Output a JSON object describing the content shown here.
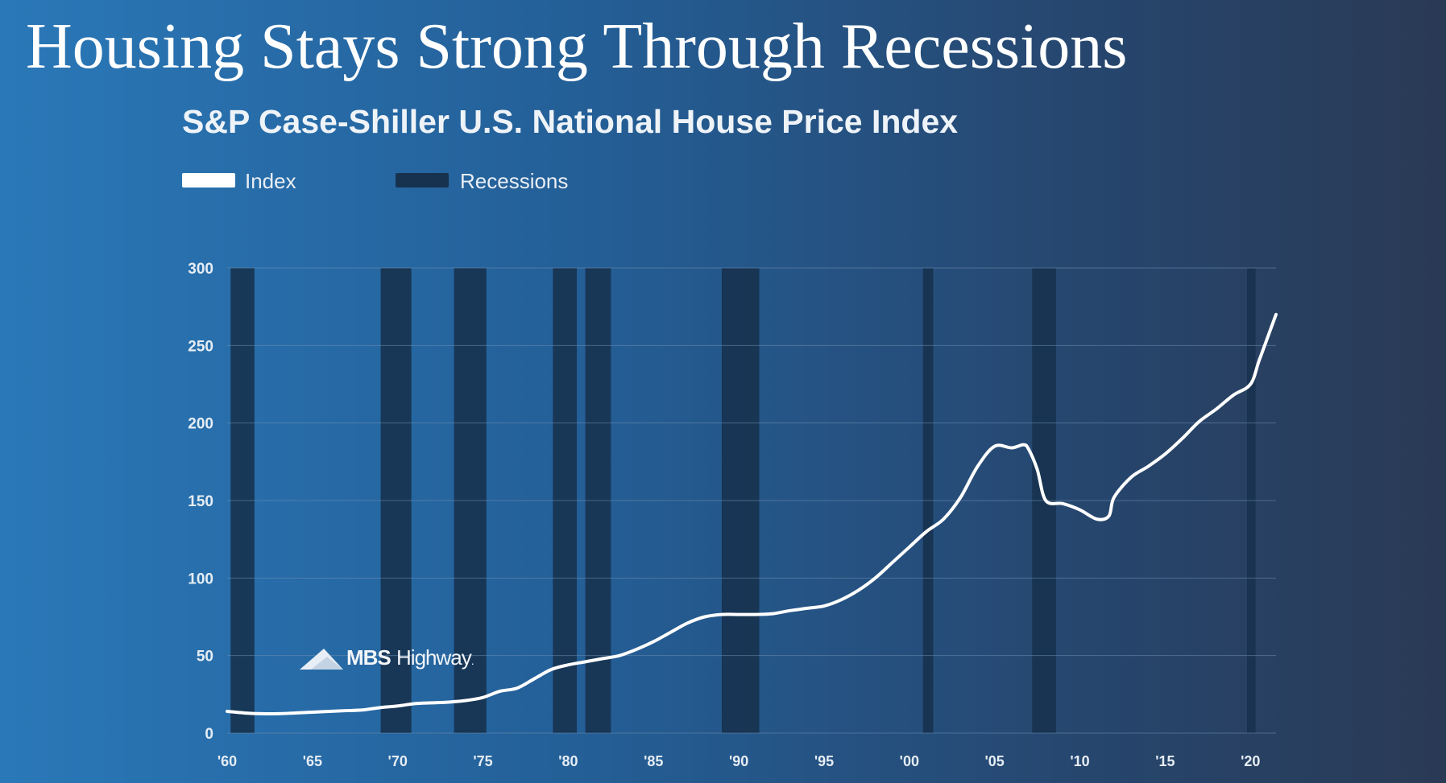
{
  "slide": {
    "headline": "Housing Stays Strong Through Recessions"
  },
  "watermark": {
    "bold": "MBS",
    "light": "Highway",
    "mark": "."
  },
  "colors": {
    "line": "#ffffff",
    "recession": "#17324f",
    "grid": "#6f8fb2",
    "tick": "#e6edf4"
  },
  "chart_data": {
    "type": "line",
    "title": "S&P Case-Shiller U.S. National House Price Index",
    "xlabel": "",
    "ylabel": "",
    "xlim": [
      1960,
      2021.5
    ],
    "ylim": [
      0,
      300
    ],
    "yticks": [
      0,
      50,
      100,
      150,
      200,
      250,
      300
    ],
    "xticks": [
      {
        "value": 1960,
        "label": "'60"
      },
      {
        "value": 1965,
        "label": "'65"
      },
      {
        "value": 1970,
        "label": "'70"
      },
      {
        "value": 1975,
        "label": "'75"
      },
      {
        "value": 1980,
        "label": "'80"
      },
      {
        "value": 1985,
        "label": "'85"
      },
      {
        "value": 1990,
        "label": "'90"
      },
      {
        "value": 1995,
        "label": "'95"
      },
      {
        "value": 2000,
        "label": "'00"
      },
      {
        "value": 2005,
        "label": "'05"
      },
      {
        "value": 2010,
        "label": "'10"
      },
      {
        "value": 2015,
        "label": "'15"
      },
      {
        "value": 2020,
        "label": "'20"
      }
    ],
    "grid": true,
    "legend": {
      "placement": "top-left",
      "index_label": "Index",
      "recessions_label": "Recessions"
    },
    "series": [
      {
        "name": "Index",
        "x": [
          1960,
          1961,
          1962,
          1963,
          1964,
          1965,
          1966,
          1967,
          1968,
          1969,
          1970,
          1971,
          1972,
          1973,
          1974,
          1975,
          1976,
          1977,
          1978,
          1979,
          1980,
          1981,
          1982,
          1983,
          1984,
          1985,
          1986,
          1987,
          1988,
          1989,
          1990,
          1991,
          1992,
          1993,
          1994,
          1995,
          1996,
          1997,
          1998,
          1999,
          2000,
          2001,
          2002,
          2003,
          2004,
          2005,
          2006,
          2006.7,
          2007,
          2007.5,
          2008,
          2009,
          2010,
          2011,
          2011.7,
          2012,
          2013,
          2014,
          2015,
          2016,
          2017,
          2018,
          2019,
          2020,
          2020.5,
          2021,
          2021.5
        ],
        "values": [
          14,
          13,
          12.5,
          12.5,
          13,
          13.5,
          14,
          14.5,
          15,
          16.5,
          17.5,
          19,
          19.5,
          20,
          21,
          23,
          27,
          29,
          35,
          41,
          44,
          46,
          48,
          50,
          54,
          59,
          65,
          71,
          75,
          76.5,
          76.5,
          76.5,
          77,
          79,
          80.5,
          82,
          86,
          92,
          100,
          110,
          120,
          130,
          138,
          152,
          172,
          185,
          184,
          186,
          183,
          170,
          150,
          148,
          144,
          138,
          140,
          152,
          165,
          172,
          180,
          190,
          201,
          209,
          218,
          225,
          240,
          255,
          270
        ]
      }
    ],
    "recessions": [
      [
        1960.2,
        1961.6
      ],
      [
        1969.0,
        1970.8
      ],
      [
        1973.3,
        1975.2
      ],
      [
        1979.1,
        1980.5
      ],
      [
        1981.0,
        1982.5
      ],
      [
        1989.0,
        1991.2
      ],
      [
        2000.8,
        2001.4
      ],
      [
        2007.2,
        2008.6
      ],
      [
        2019.8,
        2020.3
      ]
    ]
  }
}
